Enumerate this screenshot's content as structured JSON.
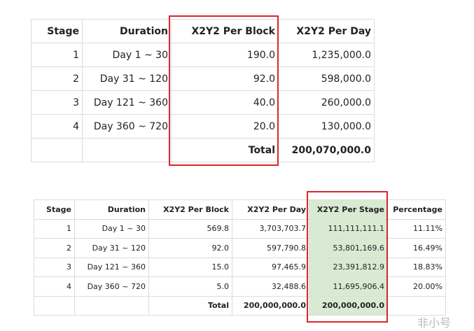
{
  "table1": {
    "headers": [
      "Stage",
      "Duration",
      "X2Y2 Per Block",
      "X2Y2 Per Day"
    ],
    "rows": [
      [
        "1",
        "Day 1 ~ 30",
        "190.0",
        "1,235,000.0"
      ],
      [
        "2",
        "Day 31 ~ 120",
        "92.0",
        "598,000.0"
      ],
      [
        "3",
        "Day 121 ~ 360",
        "40.0",
        "260,000.0"
      ],
      [
        "4",
        "Day 360 ~ 720",
        "20.0",
        "130,000.0"
      ]
    ],
    "total": {
      "label": "Total",
      "values": [
        "200,070,000.0"
      ]
    }
  },
  "table2": {
    "headers": [
      "Stage",
      "Duration",
      "X2Y2 Per Block",
      "X2Y2 Per Day",
      "X2Y2 Per Stage",
      "Percentage"
    ],
    "rows": [
      [
        "1",
        "Day 1 ~ 30",
        "569.8",
        "3,703,703.7",
        "111,111,111.1",
        "11.11%"
      ],
      [
        "2",
        "Day 31 ~ 120",
        "92.0",
        "597,790.8",
        "53,801,169.6",
        "16.49%"
      ],
      [
        "3",
        "Day 121 ~ 360",
        "15.0",
        "97,465.9",
        "23,391,812.9",
        "18.83%"
      ],
      [
        "4",
        "Day 360 ~ 720",
        "5.0",
        "32,488.6",
        "11,695,906.4",
        "20.00%"
      ]
    ],
    "total": {
      "label": "Total",
      "values": [
        "200,000,000.0",
        "200,000,000.0"
      ]
    }
  },
  "watermark": "非小号"
}
